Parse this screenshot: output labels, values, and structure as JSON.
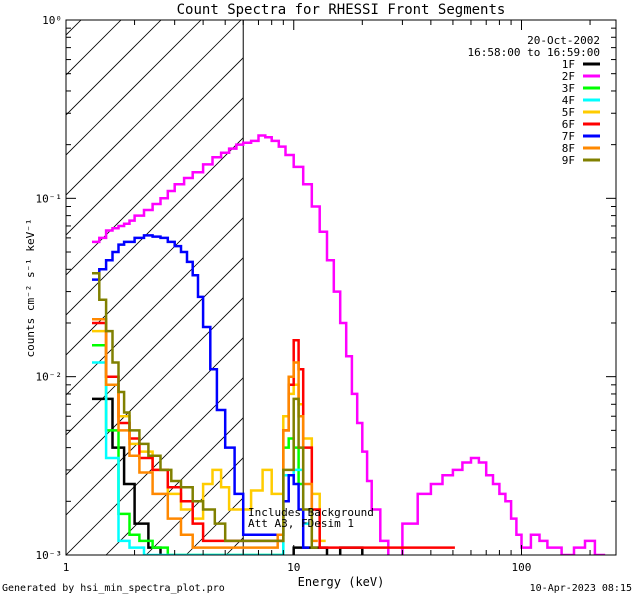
{
  "chart_data": {
    "type": "line",
    "style": "histogram-step",
    "title": "Count Spectra for RHESSI Front Segments",
    "xlabel": "Energy (keV)",
    "ylabel": "counts cm⁻² s⁻¹ keV⁻¹",
    "xscale": "log",
    "yscale": "log",
    "xlim": [
      1,
      260
    ],
    "ylim": [
      0.001,
      1
    ],
    "xticks": [
      {
        "value": 1,
        "label": "1"
      },
      {
        "value": 10,
        "label": "10"
      },
      {
        "value": 100,
        "label": "100"
      }
    ],
    "yticks": [
      {
        "value": 0.001,
        "label": "10⁻³"
      },
      {
        "value": 0.01,
        "label": "10⁻²"
      },
      {
        "value": 0.1,
        "label": "10⁻¹"
      },
      {
        "value": 1,
        "label": "10⁰"
      }
    ],
    "shaded_region": {
      "x_from": 1,
      "x_to": 6,
      "pattern": "diagonal-hatch"
    },
    "annotation_date": "20-Oct-2002",
    "annotation_time": "16:58:00 to 16:59:00",
    "annotation_note_1": "Includes Background",
    "annotation_note_2": "Att A3, FDesim 1",
    "legend_position": "top-right",
    "series": [
      {
        "name": "1F",
        "color": "#000000",
        "points": [
          [
            1.3,
            0.0075
          ],
          [
            1.6,
            0.004
          ],
          [
            1.8,
            0.0025
          ],
          [
            2.0,
            0.0015
          ],
          [
            2.3,
            0.0011
          ],
          [
            2.6,
            0.0009
          ],
          [
            10,
            0.0011
          ],
          [
            14,
            0.00085
          ],
          [
            16,
            0.0011
          ],
          [
            20,
            0.0009
          ]
        ]
      },
      {
        "name": "2F",
        "color": "#ff00ff",
        "points": [
          [
            1.3,
            0.057
          ],
          [
            1.4,
            0.06
          ],
          [
            1.5,
            0.066
          ],
          [
            1.6,
            0.068
          ],
          [
            1.7,
            0.07
          ],
          [
            1.8,
            0.072
          ],
          [
            1.9,
            0.075
          ],
          [
            2.0,
            0.08
          ],
          [
            2.2,
            0.086
          ],
          [
            2.4,
            0.093
          ],
          [
            2.6,
            0.1
          ],
          [
            2.8,
            0.11
          ],
          [
            3.0,
            0.12
          ],
          [
            3.3,
            0.13
          ],
          [
            3.6,
            0.14
          ],
          [
            4.0,
            0.155
          ],
          [
            4.4,
            0.17
          ],
          [
            4.8,
            0.18
          ],
          [
            5.2,
            0.19
          ],
          [
            5.6,
            0.2
          ],
          [
            6.0,
            0.205
          ],
          [
            6.5,
            0.21
          ],
          [
            7.0,
            0.225
          ],
          [
            7.5,
            0.22
          ],
          [
            8.0,
            0.21
          ],
          [
            8.6,
            0.195
          ],
          [
            9.2,
            0.175
          ],
          [
            10,
            0.15
          ],
          [
            11,
            0.12
          ],
          [
            12,
            0.09
          ],
          [
            13,
            0.065
          ],
          [
            14,
            0.045
          ],
          [
            15,
            0.03
          ],
          [
            16,
            0.02
          ],
          [
            17,
            0.013
          ],
          [
            18,
            0.008
          ],
          [
            19,
            0.0055
          ],
          [
            20,
            0.0038
          ],
          [
            21,
            0.0026
          ],
          [
            22,
            0.0018
          ],
          [
            24,
            0.0012
          ],
          [
            26,
            0.0009
          ],
          [
            30,
            0.0015
          ],
          [
            35,
            0.0022
          ],
          [
            40,
            0.0025
          ],
          [
            45,
            0.0028
          ],
          [
            50,
            0.003
          ],
          [
            55,
            0.0033
          ],
          [
            60,
            0.0035
          ],
          [
            65,
            0.0033
          ],
          [
            70,
            0.0028
          ],
          [
            75,
            0.0025
          ],
          [
            80,
            0.0022
          ],
          [
            85,
            0.002
          ],
          [
            90,
            0.0016
          ],
          [
            95,
            0.0013
          ],
          [
            100,
            0.0011
          ],
          [
            110,
            0.0013
          ],
          [
            120,
            0.0012
          ],
          [
            130,
            0.0011
          ],
          [
            150,
            0.001
          ],
          [
            170,
            0.0011
          ],
          [
            190,
            0.0012
          ],
          [
            210,
            0.001
          ],
          [
            230,
            0.00095
          ]
        ]
      },
      {
        "name": "3F",
        "color": "#00ff00",
        "points": [
          [
            1.3,
            0.015
          ],
          [
            1.5,
            0.005
          ],
          [
            1.7,
            0.0017
          ],
          [
            1.9,
            0.0013
          ],
          [
            2.1,
            0.0012
          ],
          [
            2.4,
            0.0011
          ],
          [
            2.8,
            0.001
          ],
          [
            9,
            0.004
          ],
          [
            9.5,
            0.0045
          ],
          [
            10,
            0.004
          ],
          [
            10.5,
            0.0025
          ]
        ]
      },
      {
        "name": "4F",
        "color": "#00ffff",
        "points": [
          [
            1.3,
            0.012
          ],
          [
            1.5,
            0.0035
          ],
          [
            1.7,
            0.0012
          ],
          [
            1.9,
            0.0011
          ],
          [
            2.2,
            0.001
          ],
          [
            9,
            0.0028
          ],
          [
            10,
            0.003
          ],
          [
            11,
            0.0015
          ]
        ]
      },
      {
        "name": "5F",
        "color": "#ffcc00",
        "points": [
          [
            1.3,
            0.018
          ],
          [
            1.5,
            0.009
          ],
          [
            1.7,
            0.006
          ],
          [
            1.9,
            0.0042
          ],
          [
            2.1,
            0.0038
          ],
          [
            2.4,
            0.003
          ],
          [
            2.8,
            0.0022
          ],
          [
            3.2,
            0.0018
          ],
          [
            3.6,
            0.0016
          ],
          [
            4.0,
            0.0025
          ],
          [
            4.4,
            0.003
          ],
          [
            4.8,
            0.0024
          ],
          [
            5.2,
            0.0018
          ],
          [
            6.5,
            0.0023
          ],
          [
            7.3,
            0.003
          ],
          [
            8,
            0.0022
          ],
          [
            9,
            0.006
          ],
          [
            9.5,
            0.008
          ],
          [
            10,
            0.009
          ],
          [
            10.5,
            0.007
          ],
          [
            11,
            0.0045
          ],
          [
            12,
            0.0022
          ],
          [
            13,
            0.0012
          ]
        ]
      },
      {
        "name": "6F",
        "color": "#ff0000",
        "points": [
          [
            1.3,
            0.02
          ],
          [
            1.5,
            0.01
          ],
          [
            1.7,
            0.0055
          ],
          [
            1.9,
            0.0045
          ],
          [
            2.1,
            0.0035
          ],
          [
            2.4,
            0.003
          ],
          [
            2.8,
            0.0024
          ],
          [
            3.2,
            0.002
          ],
          [
            3.6,
            0.0015
          ],
          [
            4.0,
            0.0012
          ],
          [
            9,
            0.005
          ],
          [
            9.5,
            0.009
          ],
          [
            10,
            0.016
          ],
          [
            10.5,
            0.011
          ],
          [
            11,
            0.004
          ],
          [
            12,
            0.0018
          ],
          [
            13,
            0.0011
          ],
          [
            48,
            0.0011
          ]
        ]
      },
      {
        "name": "7F",
        "color": "#0000ff",
        "points": [
          [
            1.3,
            0.035
          ],
          [
            1.4,
            0.04
          ],
          [
            1.5,
            0.045
          ],
          [
            1.6,
            0.05
          ],
          [
            1.7,
            0.055
          ],
          [
            1.8,
            0.057
          ],
          [
            2.0,
            0.06
          ],
          [
            2.2,
            0.062
          ],
          [
            2.4,
            0.061
          ],
          [
            2.6,
            0.06
          ],
          [
            2.8,
            0.057
          ],
          [
            3.0,
            0.054
          ],
          [
            3.2,
            0.05
          ],
          [
            3.4,
            0.044
          ],
          [
            3.6,
            0.037
          ],
          [
            3.8,
            0.028
          ],
          [
            4.0,
            0.019
          ],
          [
            4.3,
            0.011
          ],
          [
            4.6,
            0.0065
          ],
          [
            5.0,
            0.004
          ],
          [
            5.5,
            0.0022
          ],
          [
            6,
            0.0013
          ],
          [
            9,
            0.002
          ],
          [
            9.5,
            0.0028
          ],
          [
            10,
            0.0025
          ],
          [
            10.5,
            0.0018
          ],
          [
            11,
            0.0011
          ]
        ]
      },
      {
        "name": "8F",
        "color": "#ff8800",
        "points": [
          [
            1.3,
            0.021
          ],
          [
            1.5,
            0.009
          ],
          [
            1.7,
            0.005
          ],
          [
            1.9,
            0.0036
          ],
          [
            2.1,
            0.0029
          ],
          [
            2.4,
            0.0022
          ],
          [
            2.8,
            0.0016
          ],
          [
            3.2,
            0.0013
          ],
          [
            3.6,
            0.0011
          ],
          [
            8.5,
            0.0013
          ],
          [
            9,
            0.005
          ],
          [
            9.5,
            0.01
          ],
          [
            10,
            0.012
          ],
          [
            10.5,
            0.006
          ],
          [
            11,
            0.0025
          ],
          [
            12,
            0.0012
          ]
        ]
      },
      {
        "name": "9F",
        "color": "#808000",
        "points": [
          [
            1.3,
            0.038
          ],
          [
            1.4,
            0.027
          ],
          [
            1.5,
            0.018
          ],
          [
            1.6,
            0.012
          ],
          [
            1.7,
            0.0082
          ],
          [
            1.8,
            0.0063
          ],
          [
            1.9,
            0.005
          ],
          [
            2.1,
            0.0042
          ],
          [
            2.3,
            0.0036
          ],
          [
            2.6,
            0.003
          ],
          [
            2.9,
            0.0026
          ],
          [
            3.2,
            0.0024
          ],
          [
            3.6,
            0.002
          ],
          [
            4.0,
            0.0018
          ],
          [
            4.5,
            0.0015
          ],
          [
            5.0,
            0.0012
          ],
          [
            9,
            0.003
          ],
          [
            10,
            0.0075
          ],
          [
            10.5,
            0.004
          ],
          [
            11,
            0.0018
          ],
          [
            12,
            0.0011
          ]
        ]
      }
    ]
  },
  "footer": {
    "left": "Generated by hsi_min_spectra_plot.pro",
    "right": "10-Apr-2023 08:15"
  }
}
